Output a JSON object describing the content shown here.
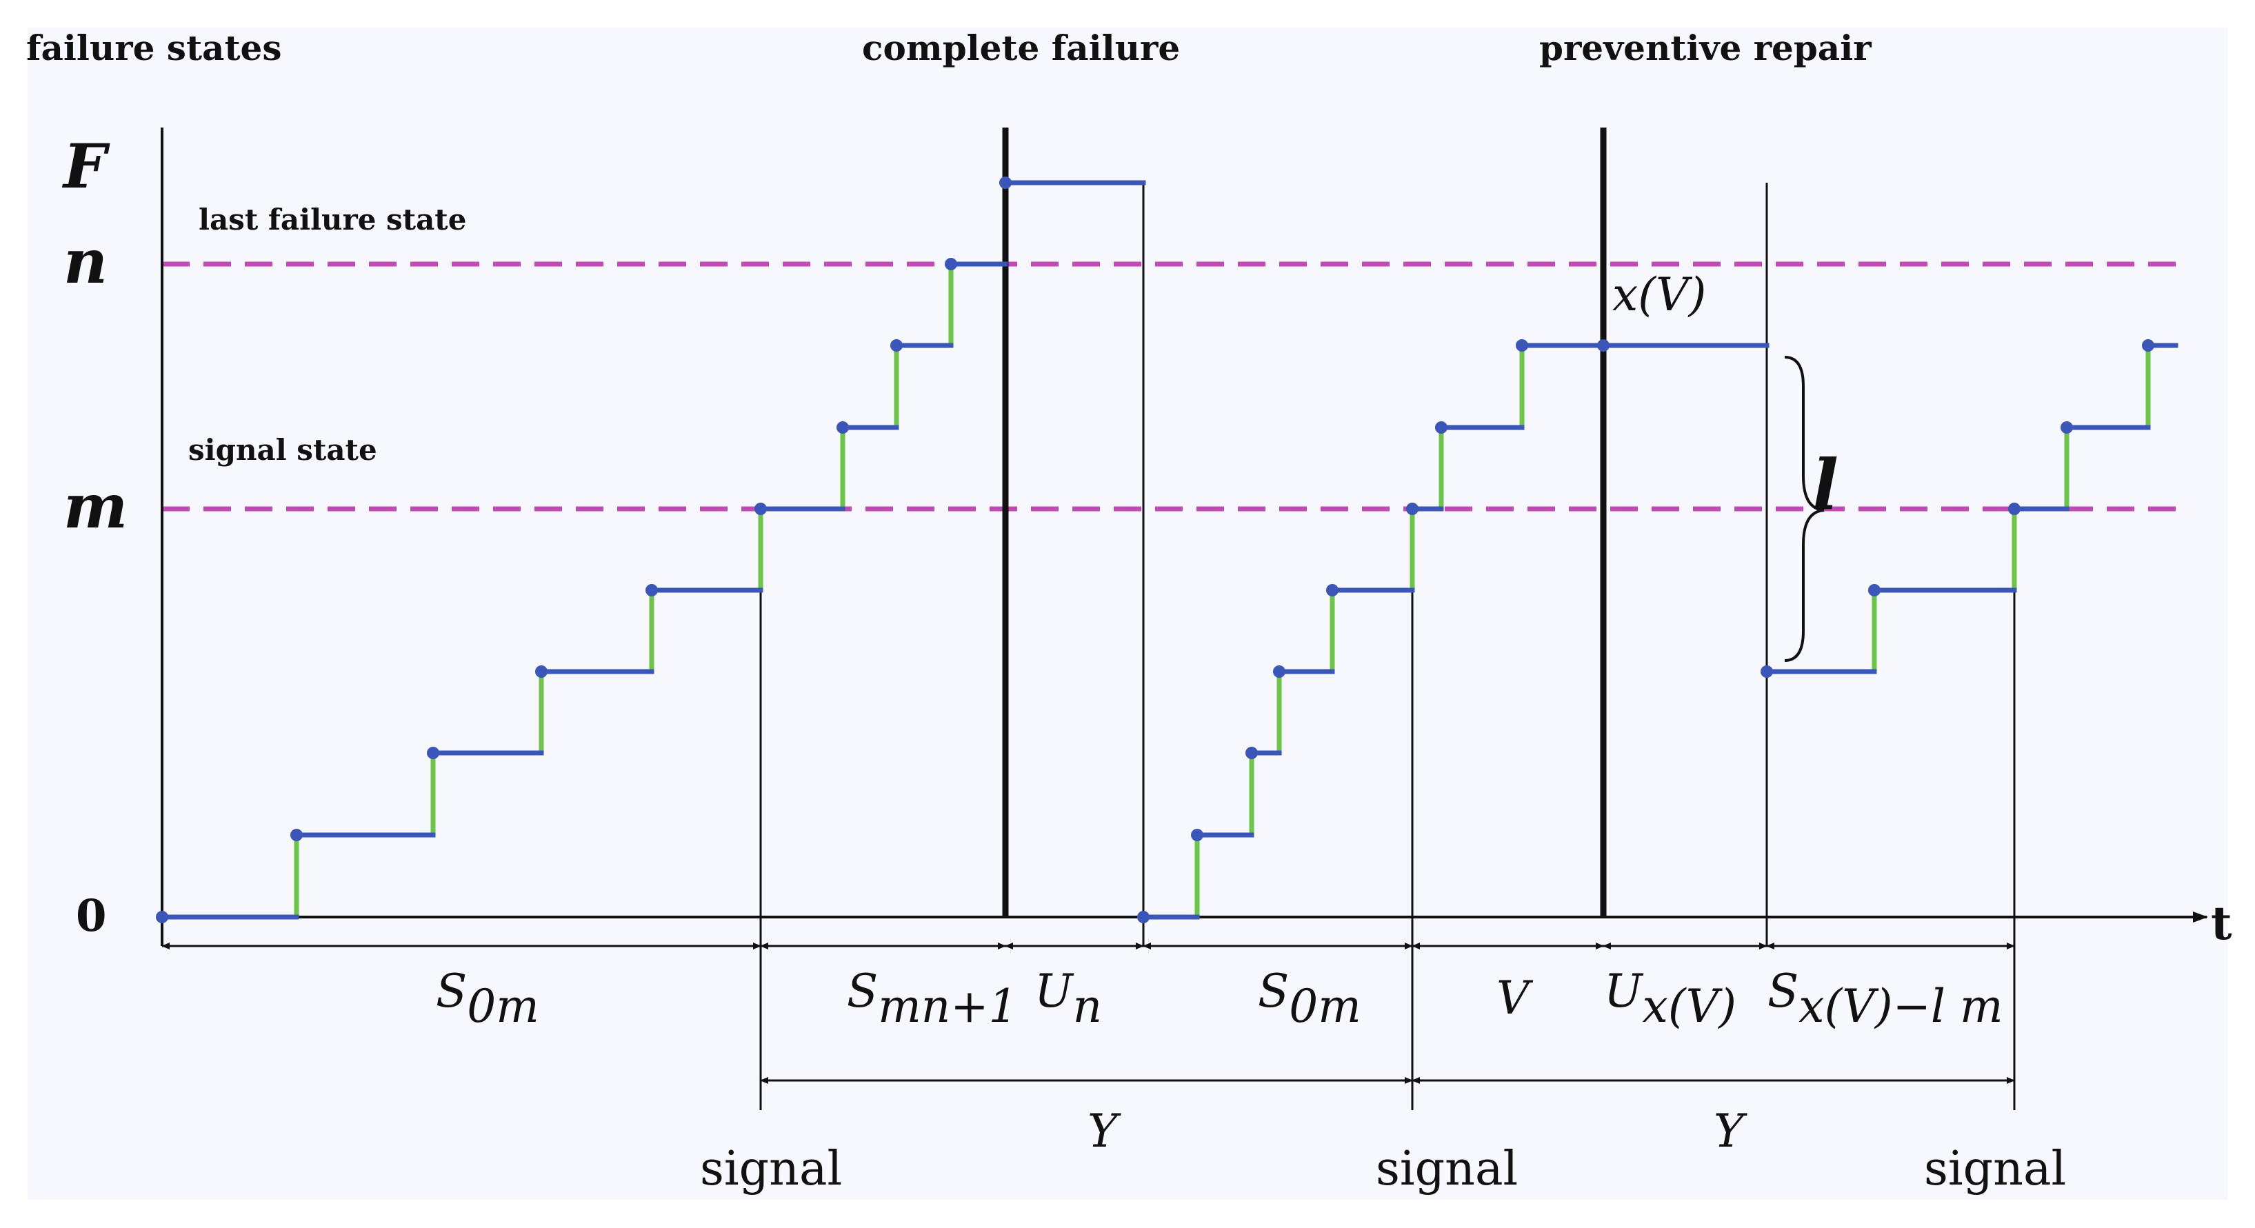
{
  "headers": {
    "failure_states": "failure states",
    "complete_failure": "complete failure",
    "preventive_repair": "preventive repair"
  },
  "axis": {
    "y_title": "F",
    "x_title": "t",
    "tick_n": "n",
    "tick_m": "m",
    "tick_0": "0"
  },
  "threshold_labels": {
    "last_failure_state": "last failure state",
    "signal_state": "signal state"
  },
  "point_label": "x(V)",
  "jump_label": "l",
  "intervals": [
    {
      "main": "S",
      "sub": "0m"
    },
    {
      "main": "S",
      "sub": "mn+1"
    },
    {
      "main": "U",
      "sub": "n"
    },
    {
      "main": "S",
      "sub": "0m"
    },
    {
      "main": "V",
      "sub": ""
    },
    {
      "main": "U",
      "sub": "x(V)"
    },
    {
      "main": "S",
      "sub": "x(V)−l m"
    }
  ],
  "cycle_labels": [
    "Y",
    "Y"
  ],
  "signal_labels": [
    "signal",
    "signal",
    "signal"
  ],
  "colors": {
    "step_horizontal": "#3a56b8",
    "step_vertical": "#6cc448",
    "threshold_line": "#c04bb4",
    "axis": "#111111",
    "panel_background": "#f7f8fd"
  },
  "state_levels": {
    "m": 4,
    "n": 8,
    "F": 9
  },
  "trajectory": {
    "cycle_1": {
      "levels": [
        0,
        1,
        2,
        3,
        4,
        5,
        6,
        7,
        8
      ],
      "end": "complete failure, jump to F"
    },
    "cycle_2": {
      "levels": [
        0,
        1,
        2,
        3,
        4,
        5,
        6,
        7
      ],
      "end": "preventive repair at x(V) = 7, drop by l to state 3"
    },
    "cycle_3": {
      "levels": [
        3,
        4,
        5,
        6,
        7
      ]
    }
  }
}
